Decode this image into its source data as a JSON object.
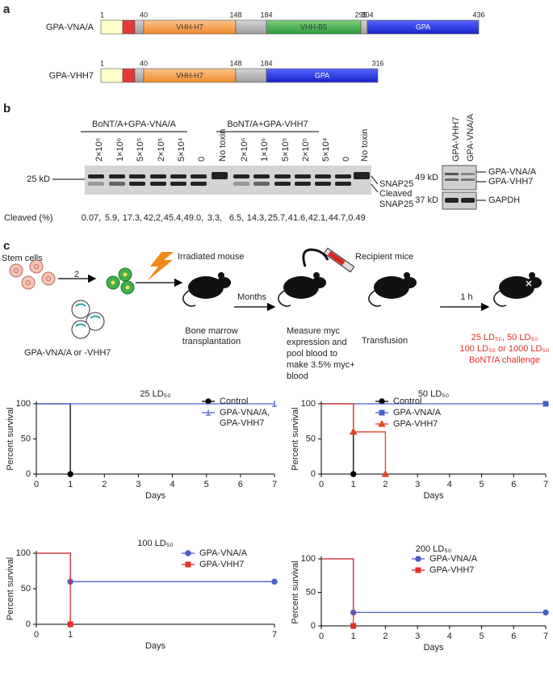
{
  "panel_a": {
    "label": "a",
    "constructs": [
      {
        "name": "GPA-VNA/A",
        "positions": [
          1,
          40,
          148,
          184,
          295,
          304,
          436
        ],
        "domains": [
          "VHH-H7",
          "VHH-B5",
          "GPA"
        ]
      },
      {
        "name": "GPA-VHH7",
        "positions": [
          1,
          40,
          148,
          184,
          316
        ],
        "domains": [
          "VHH-H7",
          "GPA"
        ]
      }
    ]
  },
  "panel_b": {
    "label": "b",
    "groups": [
      "BoNT/A+GPA-VNA/A",
      "BoNT/A+GPA-VHH7"
    ],
    "lanes": [
      "2×10⁶",
      "1×10⁶",
      "5×10⁵",
      "2×10⁵",
      "5×10⁴",
      "0",
      "No toxin",
      "2×10⁶",
      "1×10⁶",
      "5×10⁵",
      "2×10⁵",
      "5×10⁴",
      "0",
      "No toxin"
    ],
    "marker": "25 kD",
    "band_labels": [
      "SNAP25",
      "Cleaved",
      "SNAP25"
    ],
    "cleaved_label": "Cleaved (%)",
    "cleaved": [
      "0.07,",
      "5.9,",
      "17.3,",
      "42,2,",
      "45.4,",
      "49.0,",
      "3.3,",
      "6.5,",
      "14.3,",
      "25.7,",
      "41.6,",
      "42.1,",
      "44.7,",
      "0.49"
    ],
    "western": {
      "lanes": [
        "GPA-VHH7",
        "GPA-VNA/A"
      ],
      "markers": [
        "49 kD",
        "37 kD"
      ],
      "labels": [
        "GPA-VNA/A",
        "GPA-VHH7",
        "GAPDH"
      ]
    }
  },
  "panel_c": {
    "label": "c",
    "stem_cells": "Stem cells",
    "step_number": "2",
    "irradiated": "Irradiated mouse",
    "months": "Months",
    "recipient": "Recipient mice",
    "one_hour": "1 h",
    "bone_marrow": [
      "Bone marrow",
      "transplantation"
    ],
    "constructs": "GPA-VNA/A or -VHH7",
    "measure": [
      "Measure myc",
      "expression and",
      "pool blood to",
      "make 3.5% myc+",
      "blood"
    ],
    "transfusion": "Transfusion",
    "challenge": [
      "25 LD₅₀, 50 LD₅₀",
      "100 LD₅₀ or 1000 LD₅₀",
      "BoNT/A challenge"
    ]
  },
  "chart_data": [
    {
      "type": "line",
      "step": true,
      "title": "25 LD₅₀",
      "xlabel": "Days",
      "ylabel": "Percent survival",
      "xlim": [
        0,
        7
      ],
      "ylim": [
        0,
        100
      ],
      "xticks": [
        0,
        1,
        2,
        3,
        4,
        5,
        6,
        7
      ],
      "yticks": [
        0,
        50,
        100
      ],
      "series": [
        {
          "name": "Control",
          "color": "#000000",
          "marker": "circle",
          "x": [
            0,
            1
          ],
          "values": [
            100,
            0
          ]
        },
        {
          "name": "GPA-VNA/A,\nGPA-VHH7",
          "color": "#4a5ec9",
          "marker": "tick",
          "x": [
            0,
            7
          ],
          "values": [
            100,
            100
          ]
        }
      ]
    },
    {
      "type": "line",
      "step": true,
      "title": "50 LD₅₀",
      "xlabel": "Days",
      "ylabel": "Percent survival",
      "xlim": [
        0,
        7
      ],
      "ylim": [
        0,
        100
      ],
      "xticks": [
        0,
        1,
        2,
        3,
        4,
        5,
        6,
        7
      ],
      "yticks": [
        0,
        50,
        100
      ],
      "series": [
        {
          "name": "Control",
          "color": "#000000",
          "marker": "circle",
          "x": [
            0,
            1
          ],
          "values": [
            100,
            0
          ]
        },
        {
          "name": "GPA-VNA/A",
          "color": "#4a5ec9",
          "marker": "square",
          "x": [
            0,
            7
          ],
          "values": [
            100,
            100
          ]
        },
        {
          "name": "GPA-VHH7",
          "color": "#e0452b",
          "marker": "triangle",
          "x": [
            0,
            1,
            2
          ],
          "values": [
            100,
            60,
            0
          ]
        }
      ]
    },
    {
      "type": "line",
      "step": true,
      "title": "100 LD₅₀",
      "xlabel": "Days",
      "ylabel": "Percent survival",
      "xlim": [
        0,
        7
      ],
      "ylim": [
        0,
        100
      ],
      "xticks": [
        0,
        1,
        7
      ],
      "yticks": [
        0,
        50,
        100
      ],
      "series": [
        {
          "name": "GPA-VNA/A",
          "color": "#4a5ec9",
          "marker": "circle",
          "x": [
            0,
            1,
            7
          ],
          "values": [
            100,
            60,
            60
          ]
        },
        {
          "name": "GPA-VHH7",
          "color": "#e0302a",
          "marker": "square",
          "x": [
            0,
            1
          ],
          "values": [
            100,
            0
          ]
        }
      ]
    },
    {
      "type": "line",
      "step": true,
      "title": "200 LD₅₀",
      "xlabel": "Days",
      "ylabel": "Percent survival",
      "xlim": [
        0,
        7
      ],
      "ylim": [
        0,
        100
      ],
      "xticks": [
        0,
        1,
        2,
        3,
        4,
        5,
        6,
        7
      ],
      "yticks": [
        0,
        50,
        100
      ],
      "series": [
        {
          "name": "GPA-VNA/A",
          "color": "#4a5ec9",
          "marker": "circle",
          "x": [
            0,
            1,
            7
          ],
          "values": [
            100,
            20,
            20
          ]
        },
        {
          "name": "GPA-VHH7",
          "color": "#e0302a",
          "marker": "square",
          "x": [
            0,
            1
          ],
          "values": [
            100,
            0
          ]
        }
      ]
    }
  ]
}
